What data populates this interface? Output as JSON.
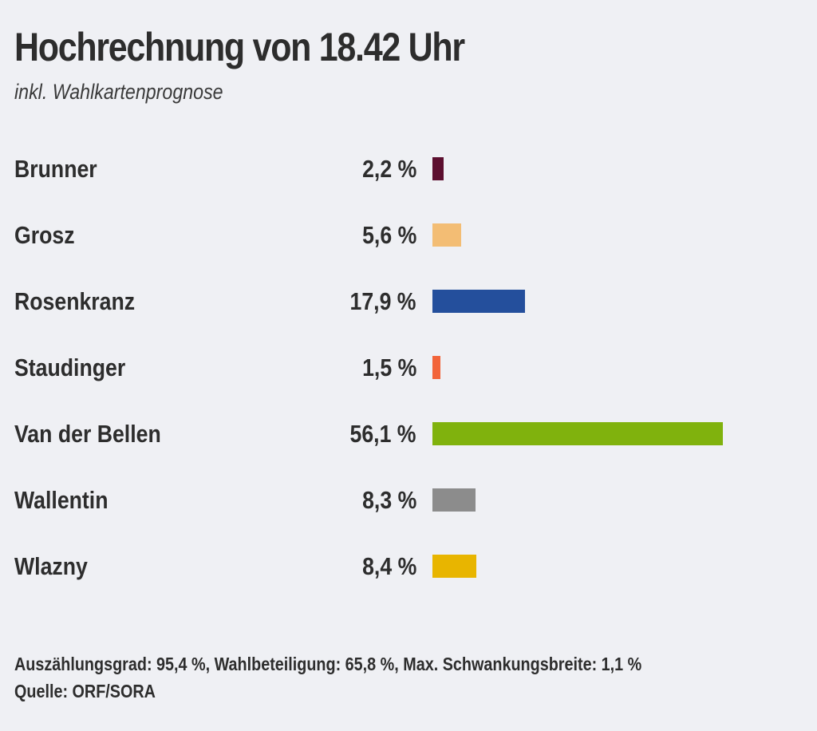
{
  "chart_data": {
    "type": "bar",
    "orientation": "horizontal",
    "title": "Hochrechnung von 18.42 Uhr",
    "subtitle": "inkl. Wahlkartenprognose",
    "xlabel": "",
    "ylabel": "",
    "unit": "%",
    "xlim": [
      0,
      100
    ],
    "grid": false,
    "categories": [
      "Brunner",
      "Grosz",
      "Rosenkranz",
      "Staudinger",
      "Van der Bellen",
      "Wallentin",
      "Wlazny"
    ],
    "values": [
      2.2,
      5.6,
      17.9,
      1.5,
      56.1,
      8.3,
      8.4
    ],
    "value_labels": [
      "2,2 %",
      "5,6 %",
      "17,9 %",
      "1,5 %",
      "56,1 %",
      "8,3 %",
      "8,4 %"
    ],
    "colors": [
      "#5c0f2f",
      "#f3bd74",
      "#244f9c",
      "#f2643a",
      "#80b20d",
      "#8c8c8c",
      "#e8b500"
    ]
  },
  "footer": {
    "stats": "Auszählungsgrad: 95,4 %, Wahlbeteiligung: 65,8 %, Max. Schwankungsbreite: 1,1 %",
    "source": "Quelle: ORF/SORA"
  }
}
